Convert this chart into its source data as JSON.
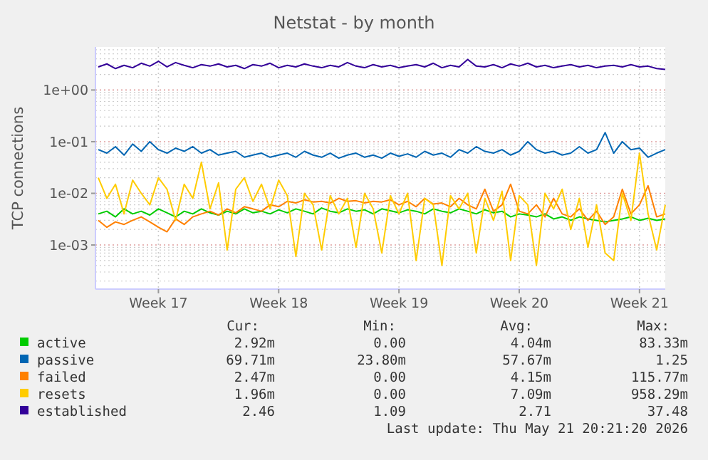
{
  "chart_data": {
    "type": "line",
    "title": "Netstat - by month",
    "ylabel": "TCP connections",
    "log": true,
    "grid": true,
    "legend": "bottom",
    "marker": "none",
    "line_style": "solid",
    "ylim": [
      0.00014,
      6.8
    ],
    "yticks": [
      {
        "value": 0.001,
        "label": "1e-03"
      },
      {
        "value": 0.01,
        "label": "1e-02"
      },
      {
        "value": 0.1,
        "label": "1e-01"
      },
      {
        "value": 1,
        "label": "1e+00"
      }
    ],
    "categories": [
      null,
      null,
      null,
      null,
      null,
      null,
      null,
      "Week 17",
      null,
      null,
      null,
      null,
      null,
      null,
      null,
      null,
      null,
      null,
      null,
      null,
      null,
      "Week 18",
      null,
      null,
      null,
      null,
      null,
      null,
      null,
      null,
      null,
      null,
      null,
      null,
      null,
      "Week 19",
      null,
      null,
      null,
      null,
      null,
      null,
      null,
      null,
      null,
      null,
      null,
      null,
      null,
      "Week 20",
      null,
      null,
      null,
      null,
      null,
      null,
      null,
      null,
      null,
      null,
      null,
      null,
      null,
      "Week 21",
      null,
      null,
      null
    ],
    "series": [
      {
        "name": "active",
        "color": "#00cc00",
        "values": [
          0.004,
          0.0045,
          0.0035,
          0.005,
          0.004,
          0.0045,
          0.0038,
          0.005,
          0.0042,
          0.0035,
          0.0045,
          0.004,
          0.005,
          0.0042,
          0.0038,
          0.0045,
          0.004,
          0.005,
          0.0042,
          0.0045,
          0.004,
          0.0048,
          0.0042,
          0.005,
          0.0045,
          0.004,
          0.0052,
          0.0045,
          0.0042,
          0.005,
          0.0045,
          0.0048,
          0.004,
          0.005,
          0.0046,
          0.0042,
          0.0048,
          0.0045,
          0.004,
          0.005,
          0.0045,
          0.0042,
          0.005,
          0.0045,
          0.004,
          0.0048,
          0.0042,
          0.0045,
          0.0035,
          0.004,
          0.0038,
          0.0035,
          0.004,
          0.0032,
          0.0035,
          0.003,
          0.0035,
          0.0032,
          0.003,
          0.0028,
          0.003,
          0.0032,
          0.0035,
          0.003,
          0.0033,
          0.003,
          0.0032
        ]
      },
      {
        "name": "passive",
        "color": "#0066b3",
        "values": [
          0.07,
          0.06,
          0.08,
          0.055,
          0.09,
          0.065,
          0.1,
          0.07,
          0.06,
          0.075,
          0.065,
          0.08,
          0.06,
          0.07,
          0.055,
          0.06,
          0.065,
          0.05,
          0.055,
          0.06,
          0.05,
          0.055,
          0.06,
          0.05,
          0.065,
          0.055,
          0.05,
          0.06,
          0.048,
          0.055,
          0.06,
          0.05,
          0.055,
          0.048,
          0.06,
          0.052,
          0.058,
          0.05,
          0.065,
          0.055,
          0.06,
          0.05,
          0.07,
          0.06,
          0.08,
          0.065,
          0.06,
          0.07,
          0.055,
          0.065,
          0.1,
          0.07,
          0.06,
          0.065,
          0.055,
          0.06,
          0.08,
          0.06,
          0.07,
          0.15,
          0.06,
          0.1,
          0.07,
          0.075,
          0.05,
          0.06,
          0.07
        ]
      },
      {
        "name": "failed",
        "color": "#ff8000",
        "values": [
          0.003,
          0.0022,
          0.0028,
          0.0025,
          0.003,
          0.0035,
          0.0028,
          0.0022,
          0.0018,
          0.0032,
          0.0025,
          0.0035,
          0.004,
          0.0045,
          0.0038,
          0.005,
          0.0042,
          0.0055,
          0.005,
          0.0045,
          0.006,
          0.0055,
          0.007,
          0.0065,
          0.0075,
          0.0068,
          0.007,
          0.0065,
          0.008,
          0.007,
          0.0072,
          0.0065,
          0.007,
          0.0068,
          0.0075,
          0.006,
          0.007,
          0.0055,
          0.008,
          0.0062,
          0.0065,
          0.0055,
          0.008,
          0.006,
          0.005,
          0.012,
          0.0045,
          0.006,
          0.015,
          0.0045,
          0.004,
          0.006,
          0.0035,
          0.008,
          0.004,
          0.0035,
          0.005,
          0.003,
          0.0045,
          0.0025,
          0.0035,
          0.012,
          0.004,
          0.006,
          0.014,
          0.0035,
          0.004
        ]
      },
      {
        "name": "resets",
        "color": "#ffcc00",
        "values": [
          0.02,
          0.008,
          0.015,
          0.004,
          0.018,
          0.01,
          0.006,
          0.02,
          0.012,
          0.003,
          0.015,
          0.008,
          0.04,
          0.005,
          0.016,
          0.0008,
          0.012,
          0.02,
          0.007,
          0.015,
          0.005,
          0.018,
          0.009,
          0.0006,
          0.01,
          0.006,
          0.0008,
          0.009,
          0.004,
          0.008,
          0.0009,
          0.01,
          0.005,
          0.0007,
          0.009,
          0.004,
          0.01,
          0.0005,
          0.008,
          0.006,
          0.0004,
          0.009,
          0.005,
          0.01,
          0.0007,
          0.008,
          0.003,
          0.011,
          0.0005,
          0.009,
          0.006,
          0.0004,
          0.01,
          0.005,
          0.012,
          0.002,
          0.008,
          0.0009,
          0.006,
          0.0007,
          0.0005,
          0.01,
          0.003,
          0.06,
          0.004,
          0.0008,
          0.006
        ]
      },
      {
        "name": "established",
        "color": "#330099",
        "values": [
          2.8,
          3.2,
          2.6,
          3.0,
          2.7,
          3.3,
          2.9,
          3.6,
          2.8,
          3.4,
          3.0,
          2.7,
          3.1,
          2.9,
          3.2,
          2.8,
          3.0,
          2.6,
          3.1,
          2.9,
          3.3,
          2.7,
          3.0,
          2.8,
          3.2,
          2.9,
          2.7,
          3.0,
          2.8,
          3.4,
          2.9,
          2.7,
          3.1,
          2.8,
          3.0,
          2.7,
          2.9,
          3.1,
          2.8,
          3.3,
          2.7,
          3.0,
          2.8,
          3.9,
          2.9,
          2.8,
          3.1,
          2.7,
          3.2,
          2.9,
          3.3,
          2.8,
          3.0,
          2.7,
          2.9,
          3.1,
          2.8,
          3.0,
          2.7,
          2.9,
          3.0,
          2.8,
          3.1,
          2.8,
          2.9,
          2.6,
          2.5
        ]
      }
    ],
    "annotations": [
      "Cur:",
      "Min:",
      "Avg:",
      "Max:",
      "2.92m",
      "0.00",
      "4.04m",
      "83.33m",
      "69.71m",
      "23.80m",
      "57.67m",
      "1.25",
      "2.47m",
      "0.00",
      "4.15m",
      "115.77m",
      "1.96m",
      "0.00",
      "7.09m",
      "958.29m",
      "2.46",
      "1.09",
      "2.71",
      "37.48",
      "Last update: Thu May 21 20:21:20 2026"
    ]
  }
}
